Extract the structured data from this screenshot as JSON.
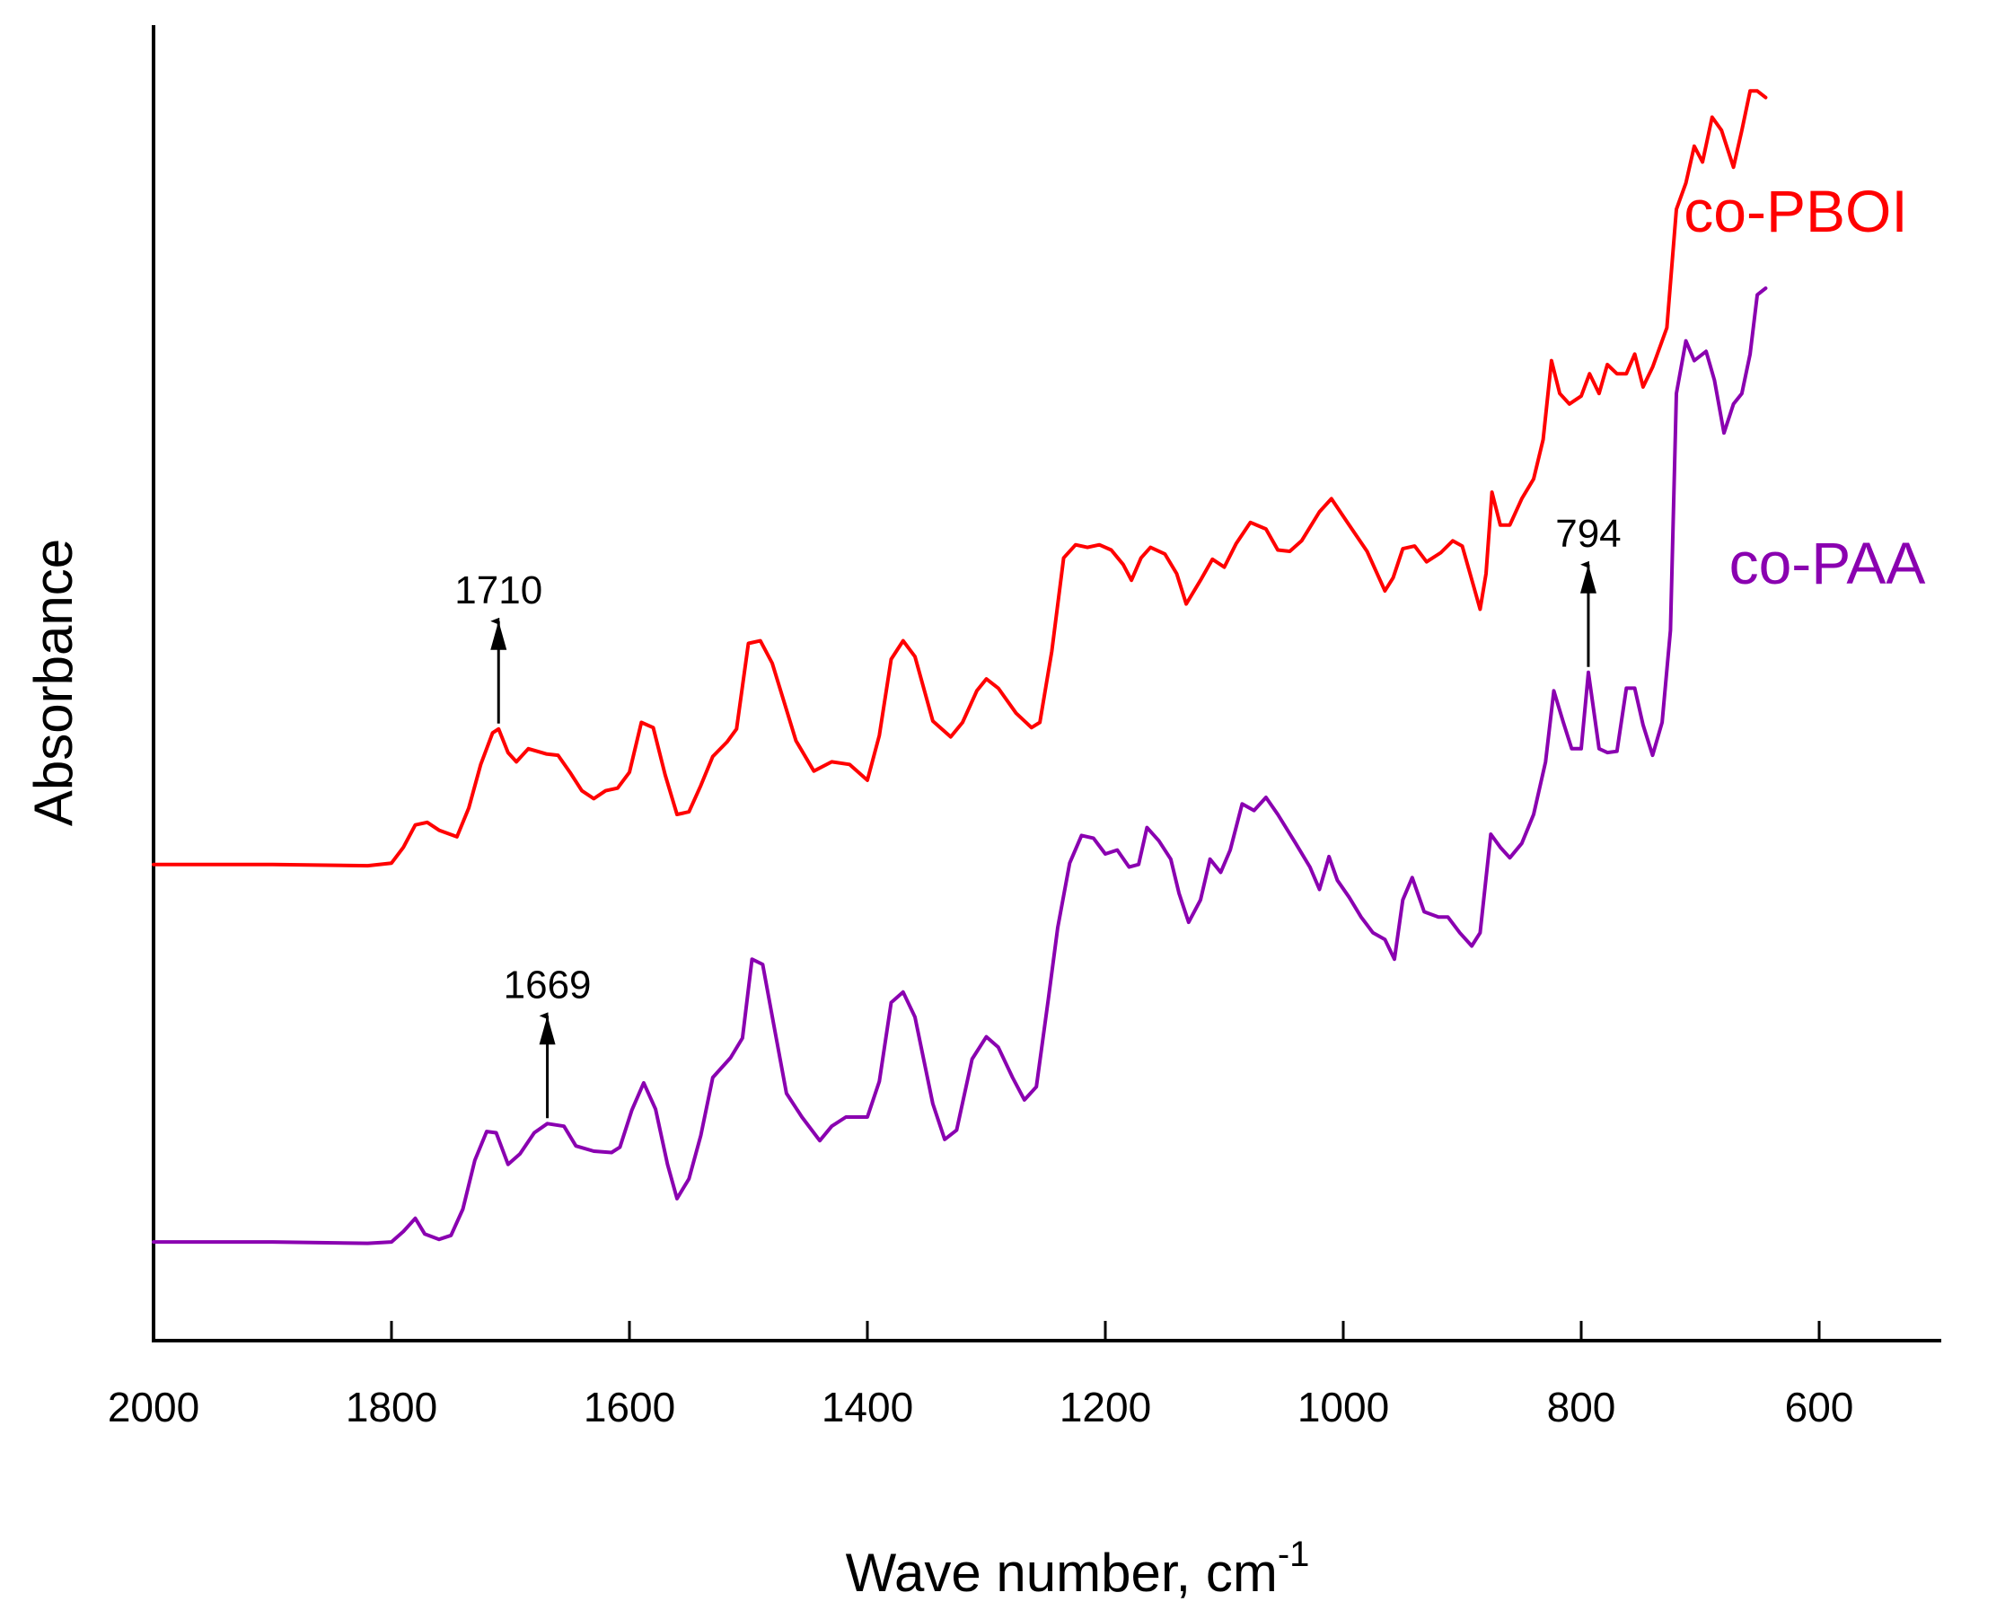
{
  "chart_data": {
    "type": "line",
    "title": "",
    "xlabel": "Wave number, cm",
    "xlabel_superscript": "-1",
    "ylabel": "Absorbance",
    "xlim": [
      2000,
      500
    ],
    "ylim": [
      0,
      1
    ],
    "x_ticks": [
      2000,
      1800,
      1600,
      1400,
      1200,
      1000,
      800,
      600
    ],
    "x_tick_labels": [
      "2000",
      "1800",
      "1600",
      "1400",
      "1200",
      "1000",
      "800",
      "600"
    ],
    "grid": false,
    "legend": "labels beside curves at right end",
    "series": [
      {
        "name": "co-PBOI",
        "color": "#ff0000",
        "points": [
          [
            2000,
            0.362
          ],
          [
            1900,
            0.362
          ],
          [
            1820,
            0.361
          ],
          [
            1800,
            0.363
          ],
          [
            1790,
            0.375
          ],
          [
            1780,
            0.392
          ],
          [
            1770,
            0.394
          ],
          [
            1760,
            0.388
          ],
          [
            1745,
            0.383
          ],
          [
            1735,
            0.405
          ],
          [
            1725,
            0.438
          ],
          [
            1715,
            0.462
          ],
          [
            1710,
            0.465
          ],
          [
            1702,
            0.447
          ],
          [
            1695,
            0.44
          ],
          [
            1685,
            0.45
          ],
          [
            1670,
            0.446
          ],
          [
            1660,
            0.445
          ],
          [
            1650,
            0.432
          ],
          [
            1640,
            0.418
          ],
          [
            1630,
            0.412
          ],
          [
            1620,
            0.418
          ],
          [
            1610,
            0.42
          ],
          [
            1600,
            0.432
          ],
          [
            1590,
            0.47
          ],
          [
            1580,
            0.466
          ],
          [
            1570,
            0.43
          ],
          [
            1560,
            0.4
          ],
          [
            1550,
            0.402
          ],
          [
            1540,
            0.422
          ],
          [
            1530,
            0.444
          ],
          [
            1518,
            0.455
          ],
          [
            1510,
            0.465
          ],
          [
            1500,
            0.53
          ],
          [
            1490,
            0.532
          ],
          [
            1480,
            0.515
          ],
          [
            1460,
            0.456
          ],
          [
            1445,
            0.433
          ],
          [
            1430,
            0.44
          ],
          [
            1415,
            0.438
          ],
          [
            1400,
            0.426
          ],
          [
            1390,
            0.46
          ],
          [
            1380,
            0.518
          ],
          [
            1370,
            0.532
          ],
          [
            1360,
            0.52
          ],
          [
            1345,
            0.471
          ],
          [
            1330,
            0.459
          ],
          [
            1320,
            0.47
          ],
          [
            1308,
            0.494
          ],
          [
            1300,
            0.503
          ],
          [
            1290,
            0.496
          ],
          [
            1275,
            0.477
          ],
          [
            1262,
            0.466
          ],
          [
            1255,
            0.47
          ],
          [
            1245,
            0.524
          ],
          [
            1235,
            0.595
          ],
          [
            1225,
            0.605
          ],
          [
            1215,
            0.603
          ],
          [
            1205,
            0.605
          ],
          [
            1195,
            0.601
          ],
          [
            1185,
            0.59
          ],
          [
            1178,
            0.578
          ],
          [
            1170,
            0.595
          ],
          [
            1162,
            0.603
          ],
          [
            1150,
            0.598
          ],
          [
            1140,
            0.583
          ],
          [
            1132,
            0.56
          ],
          [
            1120,
            0.578
          ],
          [
            1110,
            0.594
          ],
          [
            1100,
            0.588
          ],
          [
            1090,
            0.606
          ],
          [
            1078,
            0.622
          ],
          [
            1065,
            0.617
          ],
          [
            1055,
            0.601
          ],
          [
            1045,
            0.6
          ],
          [
            1035,
            0.608
          ],
          [
            1020,
            0.63
          ],
          [
            1010,
            0.64
          ],
          [
            995,
            0.62
          ],
          [
            980,
            0.6
          ],
          [
            965,
            0.57
          ],
          [
            958,
            0.58
          ],
          [
            950,
            0.602
          ],
          [
            940,
            0.604
          ],
          [
            930,
            0.592
          ],
          [
            918,
            0.599
          ],
          [
            908,
            0.608
          ],
          [
            900,
            0.604
          ],
          [
            890,
            0.572
          ],
          [
            885,
            0.556
          ],
          [
            880,
            0.583
          ],
          [
            875,
            0.645
          ],
          [
            868,
            0.62
          ],
          [
            860,
            0.62
          ],
          [
            850,
            0.64
          ],
          [
            840,
            0.655
          ],
          [
            832,
            0.685
          ],
          [
            825,
            0.745
          ],
          [
            818,
            0.72
          ],
          [
            810,
            0.712
          ],
          [
            800,
            0.718
          ],
          [
            793,
            0.735
          ],
          [
            785,
            0.72
          ],
          [
            778,
            0.742
          ],
          [
            770,
            0.735
          ],
          [
            762,
            0.735
          ],
          [
            755,
            0.75
          ],
          [
            748,
            0.725
          ],
          [
            740,
            0.74
          ],
          [
            728,
            0.77
          ],
          [
            720,
            0.86
          ],
          [
            712,
            0.88
          ],
          [
            705,
            0.908
          ],
          [
            698,
            0.896
          ],
          [
            690,
            0.93
          ],
          [
            682,
            0.92
          ],
          [
            672,
            0.892
          ],
          [
            665,
            0.92
          ],
          [
            658,
            0.95
          ],
          [
            652,
            0.95
          ],
          [
            645,
            0.945
          ]
        ]
      },
      {
        "name": "co-PAA",
        "color": "#8a00b0",
        "points": [
          [
            2000,
            0.075
          ],
          [
            1900,
            0.075
          ],
          [
            1820,
            0.074
          ],
          [
            1800,
            0.075
          ],
          [
            1790,
            0.083
          ],
          [
            1780,
            0.093
          ],
          [
            1772,
            0.081
          ],
          [
            1760,
            0.077
          ],
          [
            1750,
            0.08
          ],
          [
            1740,
            0.1
          ],
          [
            1730,
            0.137
          ],
          [
            1720,
            0.159
          ],
          [
            1712,
            0.158
          ],
          [
            1702,
            0.134
          ],
          [
            1692,
            0.142
          ],
          [
            1680,
            0.158
          ],
          [
            1669,
            0.165
          ],
          [
            1655,
            0.163
          ],
          [
            1645,
            0.148
          ],
          [
            1630,
            0.144
          ],
          [
            1615,
            0.143
          ],
          [
            1608,
            0.147
          ],
          [
            1598,
            0.175
          ],
          [
            1588,
            0.196
          ],
          [
            1578,
            0.176
          ],
          [
            1568,
            0.134
          ],
          [
            1560,
            0.108
          ],
          [
            1550,
            0.123
          ],
          [
            1540,
            0.156
          ],
          [
            1530,
            0.2
          ],
          [
            1515,
            0.215
          ],
          [
            1505,
            0.23
          ],
          [
            1497,
            0.29
          ],
          [
            1488,
            0.286
          ],
          [
            1478,
            0.237
          ],
          [
            1468,
            0.188
          ],
          [
            1455,
            0.17
          ],
          [
            1440,
            0.152
          ],
          [
            1430,
            0.163
          ],
          [
            1418,
            0.17
          ],
          [
            1400,
            0.17
          ],
          [
            1390,
            0.197
          ],
          [
            1380,
            0.257
          ],
          [
            1370,
            0.265
          ],
          [
            1360,
            0.246
          ],
          [
            1345,
            0.18
          ],
          [
            1335,
            0.153
          ],
          [
            1325,
            0.16
          ],
          [
            1312,
            0.214
          ],
          [
            1300,
            0.231
          ],
          [
            1290,
            0.223
          ],
          [
            1278,
            0.2
          ],
          [
            1268,
            0.183
          ],
          [
            1258,
            0.193
          ],
          [
            1248,
            0.259
          ],
          [
            1240,
            0.314
          ],
          [
            1230,
            0.363
          ],
          [
            1220,
            0.384
          ],
          [
            1210,
            0.382
          ],
          [
            1200,
            0.37
          ],
          [
            1190,
            0.373
          ],
          [
            1180,
            0.36
          ],
          [
            1172,
            0.362
          ],
          [
            1165,
            0.39
          ],
          [
            1155,
            0.38
          ],
          [
            1145,
            0.366
          ],
          [
            1138,
            0.34
          ],
          [
            1130,
            0.318
          ],
          [
            1120,
            0.335
          ],
          [
            1112,
            0.366
          ],
          [
            1103,
            0.356
          ],
          [
            1095,
            0.373
          ],
          [
            1085,
            0.408
          ],
          [
            1075,
            0.403
          ],
          [
            1065,
            0.413
          ],
          [
            1055,
            0.4
          ],
          [
            1040,
            0.378
          ],
          [
            1028,
            0.36
          ],
          [
            1020,
            0.343
          ],
          [
            1012,
            0.368
          ],
          [
            1005,
            0.35
          ],
          [
            995,
            0.337
          ],
          [
            985,
            0.322
          ],
          [
            975,
            0.31
          ],
          [
            965,
            0.305
          ],
          [
            957,
            0.29
          ],
          [
            950,
            0.335
          ],
          [
            942,
            0.352
          ],
          [
            932,
            0.326
          ],
          [
            920,
            0.322
          ],
          [
            912,
            0.322
          ],
          [
            902,
            0.31
          ],
          [
            892,
            0.3
          ],
          [
            885,
            0.31
          ],
          [
            876,
            0.385
          ],
          [
            868,
            0.375
          ],
          [
            860,
            0.367
          ],
          [
            850,
            0.378
          ],
          [
            840,
            0.4
          ],
          [
            830,
            0.44
          ],
          [
            823,
            0.494
          ],
          [
            815,
            0.47
          ],
          [
            808,
            0.45
          ],
          [
            800,
            0.45
          ],
          [
            794,
            0.508
          ],
          [
            785,
            0.45
          ],
          [
            778,
            0.447
          ],
          [
            770,
            0.448
          ],
          [
            762,
            0.496
          ],
          [
            755,
            0.496
          ],
          [
            748,
            0.468
          ],
          [
            740,
            0.445
          ],
          [
            732,
            0.47
          ],
          [
            725,
            0.54
          ],
          [
            720,
            0.72
          ],
          [
            712,
            0.76
          ],
          [
            705,
            0.745
          ],
          [
            695,
            0.752
          ],
          [
            688,
            0.73
          ],
          [
            680,
            0.69
          ],
          [
            672,
            0.712
          ],
          [
            665,
            0.72
          ],
          [
            658,
            0.75
          ],
          [
            652,
            0.795
          ],
          [
            645,
            0.8
          ]
        ]
      }
    ],
    "annotations": [
      {
        "label": "1710",
        "x": 1710,
        "series": 0
      },
      {
        "label": "1669",
        "x": 1669,
        "series": 1
      },
      {
        "label": "794",
        "x": 794,
        "series": 1
      }
    ]
  }
}
